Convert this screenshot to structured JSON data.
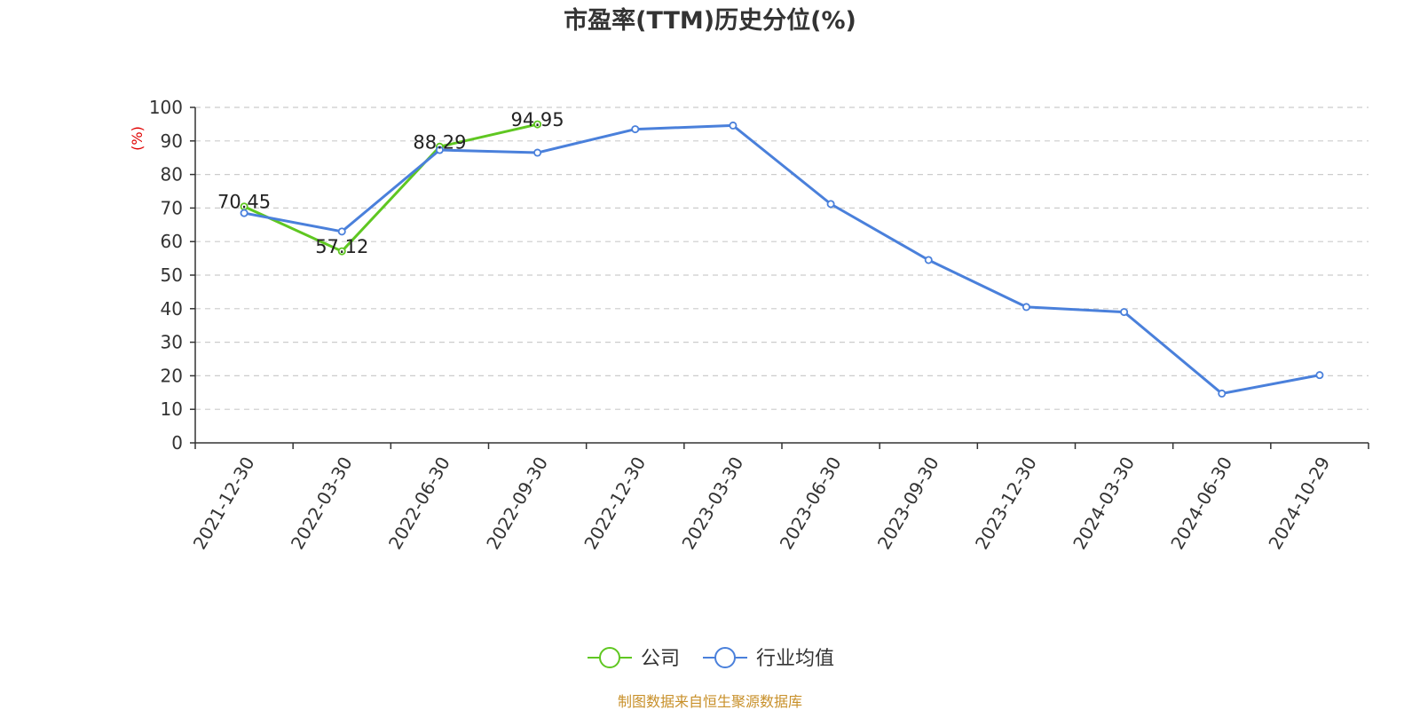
{
  "chart_data": {
    "type": "line",
    "title": "市盈率(TTM)历史分位(%)",
    "ylabel": "(%)",
    "ylim": [
      0,
      100
    ],
    "yticks": [
      0,
      10,
      20,
      30,
      40,
      50,
      60,
      70,
      80,
      90,
      100
    ],
    "grid": true,
    "legend_position": "bottom",
    "categories": [
      "2021-12-30",
      "2022-03-30",
      "2022-06-30",
      "2022-09-30",
      "2022-12-30",
      "2023-03-30",
      "2023-06-30",
      "2023-09-30",
      "2023-12-30",
      "2024-03-30",
      "2024-06-30",
      "2024-10-29"
    ],
    "series": [
      {
        "name": "公司",
        "color": "#5fc721",
        "values": [
          70.45,
          57.12,
          88.29,
          94.95,
          null,
          null,
          null,
          null,
          null,
          null,
          null,
          null
        ],
        "data_labels": [
          "70.45",
          "57.12",
          "88.29",
          "94.95",
          null,
          null,
          null,
          null,
          null,
          null,
          null,
          null
        ]
      },
      {
        "name": "行业均值",
        "color": "#4a80db",
        "values": [
          68.5,
          63.0,
          87.3,
          86.5,
          93.5,
          94.6,
          71.2,
          54.5,
          40.5,
          39.0,
          14.7,
          20.2
        ]
      }
    ],
    "source": "制图数据来自恒生聚源数据库"
  },
  "colors": {
    "axis": "#333333",
    "grid": "#cccccc",
    "unit_label": "#e00000",
    "source_text": "#c8902a"
  }
}
